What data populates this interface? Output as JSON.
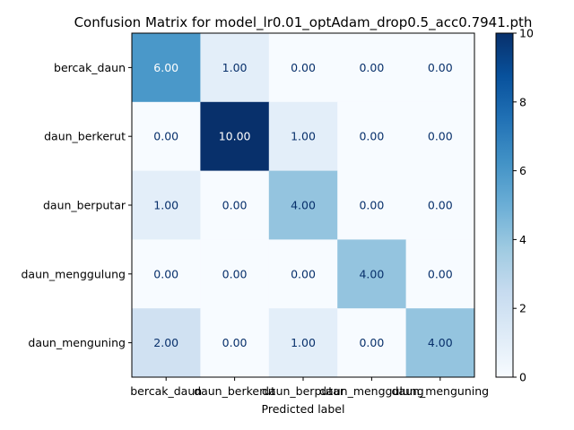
{
  "chart_data": {
    "type": "heatmap",
    "title": "Confusion Matrix for model_lr0.01_optAdam_drop0.5_acc0.7941.pth",
    "xlabel": "Predicted label",
    "ylabel": "",
    "x_categories": [
      "bercak_daun",
      "daun_berkerut",
      "daun_berputar",
      "daun_menggulung",
      "daun_menguning"
    ],
    "y_categories": [
      "bercak_daun",
      "daun_berkerut",
      "daun_berputar",
      "daun_menggulung",
      "daun_menguning"
    ],
    "values": [
      [
        6,
        1,
        0,
        0,
        0
      ],
      [
        0,
        10,
        1,
        0,
        0
      ],
      [
        1,
        0,
        4,
        0,
        0
      ],
      [
        0,
        0,
        0,
        4,
        0
      ],
      [
        2,
        0,
        1,
        0,
        4
      ]
    ],
    "value_labels": [
      [
        "6.00",
        "1.00",
        "0.00",
        "0.00",
        "0.00"
      ],
      [
        "0.00",
        "10.00",
        "1.00",
        "0.00",
        "0.00"
      ],
      [
        "1.00",
        "0.00",
        "4.00",
        "0.00",
        "0.00"
      ],
      [
        "0.00",
        "0.00",
        "0.00",
        "4.00",
        "0.00"
      ],
      [
        "2.00",
        "0.00",
        "1.00",
        "0.00",
        "4.00"
      ]
    ],
    "colormap": "Blues",
    "color_range": [
      0,
      10
    ],
    "colorbar_ticks": [
      "0",
      "2",
      "4",
      "6",
      "8",
      "10"
    ],
    "grid": false
  }
}
